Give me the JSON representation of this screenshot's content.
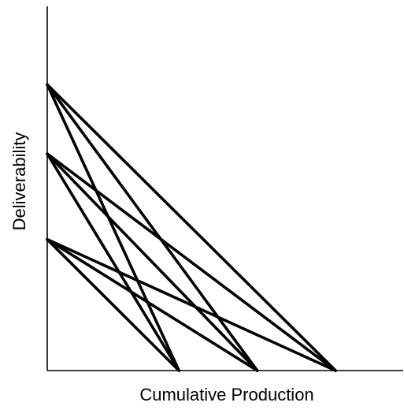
{
  "chart_data": {
    "type": "line",
    "title": "",
    "xlabel": "Cumulative Production",
    "ylabel": "Deliverability",
    "x_ticks": [],
    "y_ticks": [],
    "xlim": [
      0,
      1
    ],
    "ylim": [
      0,
      1
    ],
    "grid": false,
    "legend": "none",
    "colors": {
      "line": "#000000",
      "axis": "#000000",
      "background": "#ffffff"
    },
    "series": [
      {
        "x": [
          0,
          0.37
        ],
        "y": [
          0.785,
          0
        ]
      },
      {
        "x": [
          0,
          0.59
        ],
        "y": [
          0.785,
          0
        ]
      },
      {
        "x": [
          0,
          0.81
        ],
        "y": [
          0.785,
          0
        ]
      },
      {
        "x": [
          0,
          0.37
        ],
        "y": [
          0.595,
          0
        ]
      },
      {
        "x": [
          0,
          0.59
        ],
        "y": [
          0.595,
          0
        ]
      },
      {
        "x": [
          0,
          0.81
        ],
        "y": [
          0.595,
          0
        ]
      },
      {
        "x": [
          0,
          0.37
        ],
        "y": [
          0.36,
          0
        ]
      },
      {
        "x": [
          0,
          0.59
        ],
        "y": [
          0.36,
          0
        ]
      },
      {
        "x": [
          0,
          0.81
        ],
        "y": [
          0.36,
          0
        ]
      }
    ]
  }
}
